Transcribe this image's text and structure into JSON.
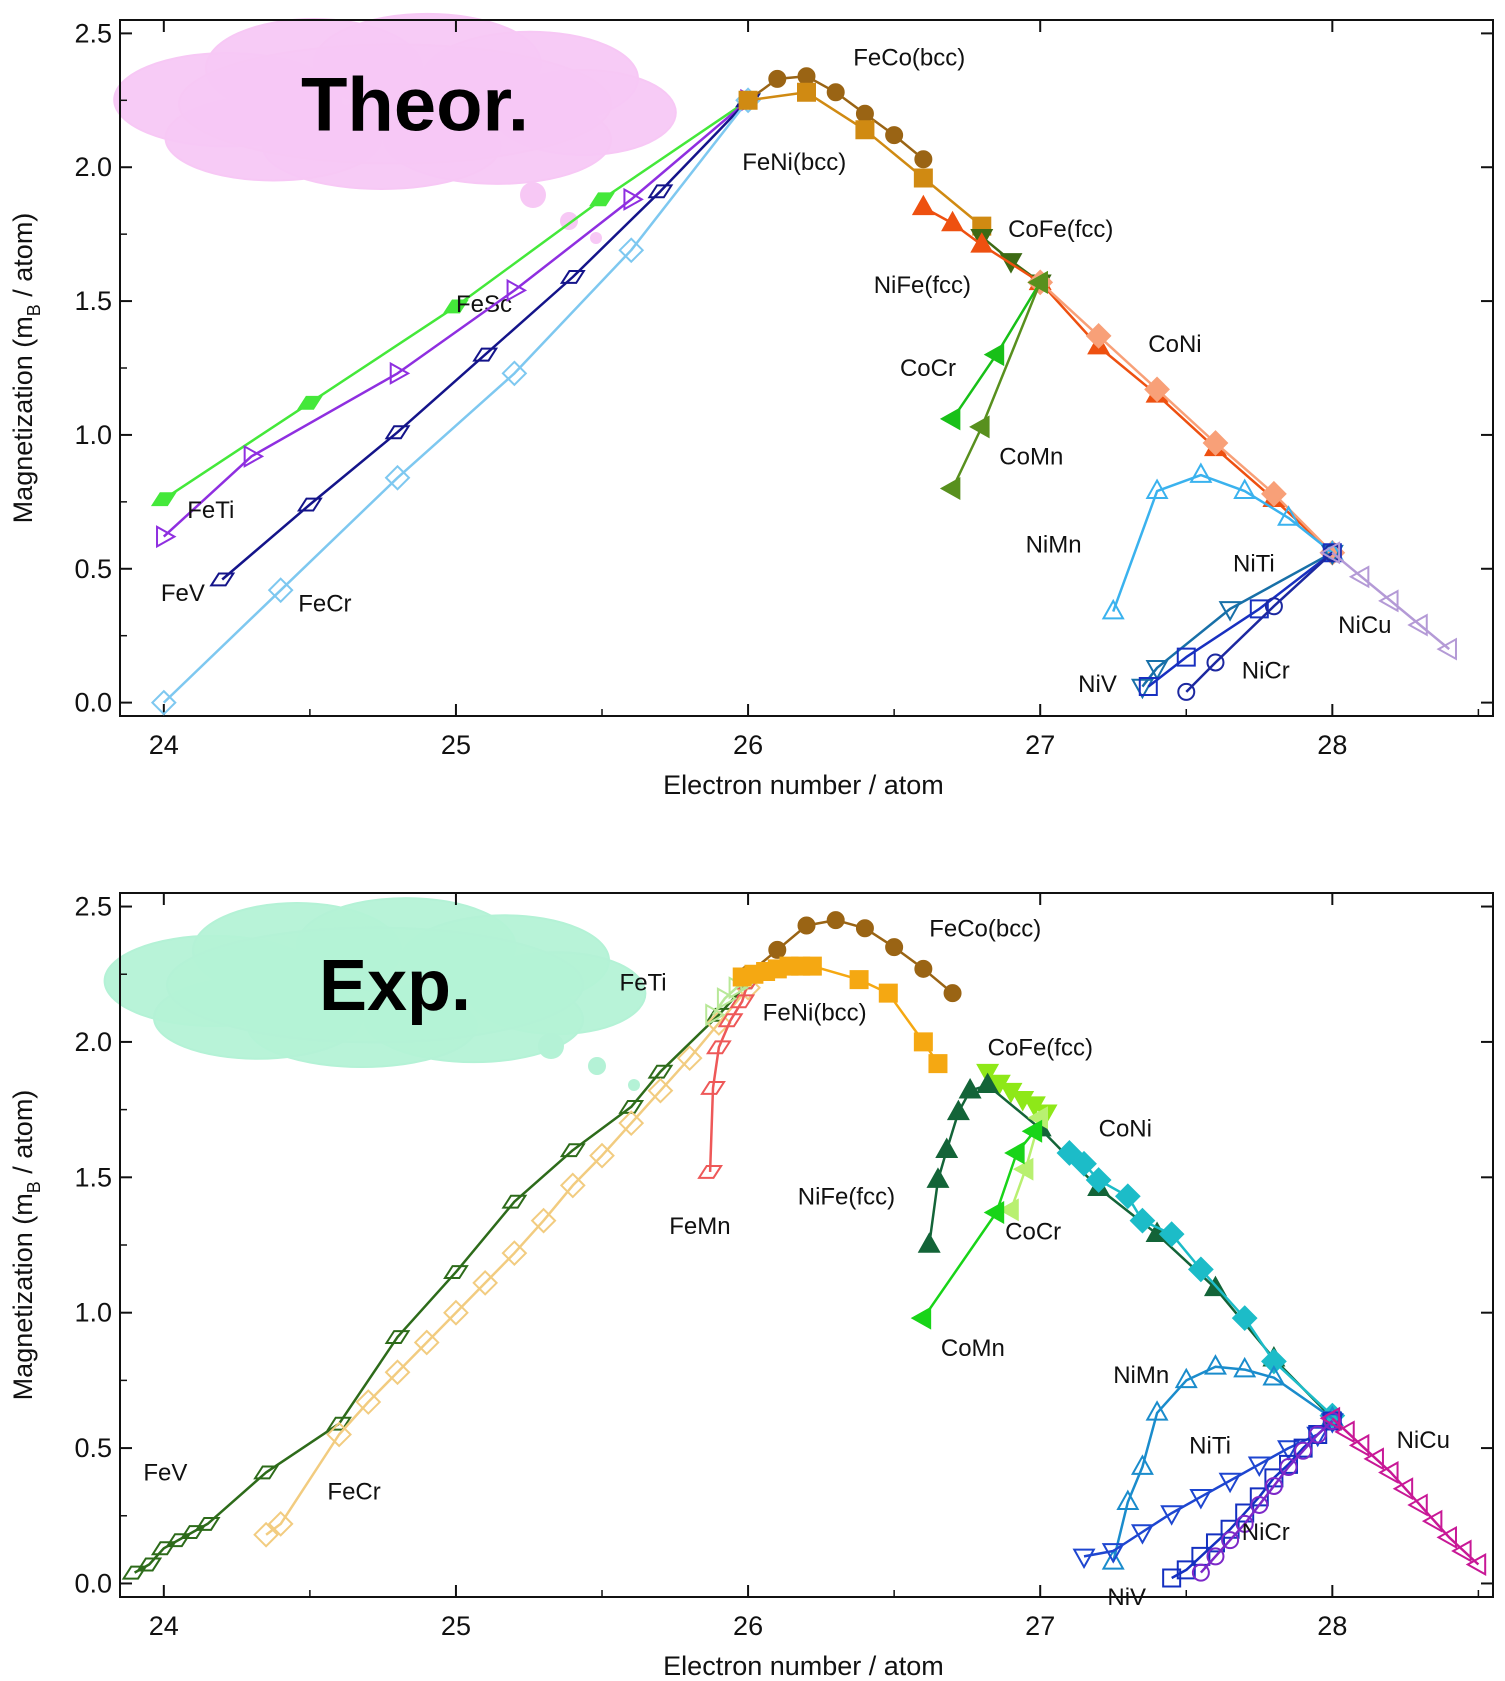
{
  "chart_data": [
    {
      "type": "line",
      "cloud_text": "Theor.",
      "cloud_color": "#f7c8f5",
      "xlabel": "Electron number / atom",
      "ylabel_main": "Magnetization (m",
      "ylabel_sub": "B",
      "ylabel_end": " / atom)",
      "xlim": [
        23.85,
        28.55
      ],
      "ylim": [
        -0.05,
        2.55
      ],
      "xticks": [
        "24",
        "25",
        "26",
        "27",
        "28"
      ],
      "yticks": [
        "0.0",
        "0.5",
        "1.0",
        "1.5",
        "2.0",
        "2.5"
      ],
      "series": [
        {
          "name": "FeSc",
          "color": "#44e83a",
          "marker": "diamond-thin",
          "filled": true,
          "label_at": [
            25.0,
            1.46
          ],
          "x": [
            24.0,
            24.5,
            25.0,
            25.5,
            26.0
          ],
          "y": [
            0.76,
            1.12,
            1.48,
            1.88,
            2.25
          ]
        },
        {
          "name": "FeTi",
          "color": "#8f2fe0",
          "marker": "tri-right",
          "filled": false,
          "label_at": [
            24.08,
            0.69
          ],
          "x": [
            24.0,
            24.3,
            24.8,
            25.2,
            25.6,
            26.0
          ],
          "y": [
            0.62,
            0.92,
            1.23,
            1.54,
            1.88,
            2.25
          ]
        },
        {
          "name": "FeV",
          "color": "#14148a",
          "marker": "diamond-thin",
          "filled": false,
          "label_at": [
            23.99,
            0.38
          ],
          "x": [
            24.2,
            24.5,
            24.8,
            25.1,
            25.4,
            25.7,
            26.0
          ],
          "y": [
            0.46,
            0.74,
            1.01,
            1.3,
            1.59,
            1.91,
            2.25
          ]
        },
        {
          "name": "FeCr",
          "color": "#7ec8f0",
          "marker": "diamond",
          "filled": false,
          "label_at": [
            24.46,
            0.34
          ],
          "x": [
            24.0,
            24.4,
            24.8,
            25.2,
            25.6,
            26.0
          ],
          "y": [
            0.0,
            0.42,
            0.84,
            1.23,
            1.69,
            2.25
          ]
        },
        {
          "name": "FeCo(bcc)",
          "color": "#9a6414",
          "marker": "circle",
          "filled": true,
          "label_at": [
            26.36,
            2.38
          ],
          "x": [
            26.0,
            26.1,
            26.2,
            26.3,
            26.4,
            26.5,
            26.6
          ],
          "y": [
            2.25,
            2.33,
            2.34,
            2.28,
            2.2,
            2.12,
            2.03
          ]
        },
        {
          "name": "FeNi(bcc)",
          "color": "#d08a12",
          "marker": "square",
          "filled": true,
          "label_at": [
            25.98,
            1.99
          ],
          "x": [
            26.0,
            26.2,
            26.4,
            26.6,
            26.8
          ],
          "y": [
            2.25,
            2.28,
            2.14,
            1.96,
            1.78
          ]
        },
        {
          "name": "CoFe(fcc)",
          "color": "#3d6a14",
          "marker": "tri-down",
          "filled": true,
          "label_at": [
            26.89,
            1.74
          ],
          "x": [
            26.8,
            26.9,
            27.0
          ],
          "y": [
            1.74,
            1.65,
            1.57
          ]
        },
        {
          "name": "NiFe(fcc)",
          "color": "#ee5010",
          "marker": "tri-up",
          "filled": true,
          "label_at": [
            26.43,
            1.53
          ],
          "x": [
            26.6,
            26.7,
            26.8,
            27.0,
            27.2,
            27.4,
            27.6,
            27.8,
            28.0
          ],
          "y": [
            1.85,
            1.79,
            1.71,
            1.57,
            1.33,
            1.15,
            0.95,
            0.76,
            0.56
          ]
        },
        {
          "name": "CoNi",
          "color": "#f8a078",
          "marker": "diamond",
          "filled": true,
          "label_at": [
            27.37,
            1.31
          ],
          "x": [
            27.0,
            27.2,
            27.4,
            27.6,
            27.8,
            28.0
          ],
          "y": [
            1.57,
            1.37,
            1.17,
            0.97,
            0.78,
            0.56
          ]
        },
        {
          "name": "CoCr",
          "color": "#18c018",
          "marker": "tri-left",
          "filled": true,
          "label_at": [
            26.52,
            1.22
          ],
          "x": [
            26.7,
            26.85,
            27.0
          ],
          "y": [
            1.06,
            1.3,
            1.57
          ]
        },
        {
          "name": "CoMn",
          "color": "#58901e",
          "marker": "tri-left",
          "filled": true,
          "label_at": [
            26.86,
            0.89
          ],
          "x": [
            26.7,
            26.8,
            27.0
          ],
          "y": [
            0.8,
            1.03,
            1.57
          ]
        },
        {
          "name": "NiMn",
          "color": "#3ab2ee",
          "marker": "tri-up",
          "filled": false,
          "label_at": [
            26.95,
            0.56
          ],
          "x": [
            27.25,
            27.4,
            27.55,
            27.7,
            27.85,
            28.0
          ],
          "y": [
            0.34,
            0.79,
            0.85,
            0.79,
            0.69,
            0.56
          ]
        },
        {
          "name": "NiTi",
          "color": "#1870a8",
          "marker": "tri-down",
          "filled": false,
          "label_at": [
            27.66,
            0.49
          ],
          "x": [
            27.35,
            27.4,
            27.65,
            28.0
          ],
          "y": [
            0.06,
            0.13,
            0.35,
            0.56
          ]
        },
        {
          "name": "NiV",
          "color": "#1830c0",
          "marker": "square",
          "filled": false,
          "label_at": [
            27.13,
            0.04
          ],
          "x": [
            27.37,
            27.5,
            27.75,
            28.0
          ],
          "y": [
            0.06,
            0.17,
            0.35,
            0.56
          ]
        },
        {
          "name": "NiCr",
          "color": "#1c28a0",
          "marker": "circle",
          "filled": false,
          "label_at": [
            27.69,
            0.09
          ],
          "x": [
            27.5,
            27.6,
            27.8,
            28.0
          ],
          "y": [
            0.04,
            0.15,
            0.36,
            0.56
          ]
        },
        {
          "name": "NiCu",
          "color": "#b49ad6",
          "marker": "tri-left",
          "filled": false,
          "label_at": [
            28.02,
            0.26
          ],
          "x": [
            28.0,
            28.1,
            28.2,
            28.3,
            28.4
          ],
          "y": [
            0.56,
            0.47,
            0.38,
            0.29,
            0.2
          ]
        }
      ]
    },
    {
      "type": "line",
      "cloud_text": "Exp.",
      "cloud_color": "#b4f2d6",
      "xlabel": "Electron number / atom",
      "ylabel_main": "Magnetization (m",
      "ylabel_sub": "B",
      "ylabel_end": " / atom)",
      "xlim": [
        23.85,
        28.55
      ],
      "ylim": [
        -0.05,
        2.55
      ],
      "xticks": [
        "24",
        "25",
        "26",
        "27",
        "28"
      ],
      "yticks": [
        "0.0",
        "0.5",
        "1.0",
        "1.5",
        "2.0",
        "2.5"
      ],
      "series": [
        {
          "name": "FeV",
          "color": "#2d6b1a",
          "marker": "diamond-thin",
          "filled": false,
          "label_at": [
            23.93,
            0.38
          ],
          "x": [
            23.9,
            23.95,
            24.0,
            24.05,
            24.1,
            24.15,
            24.35,
            24.6,
            24.8,
            25.0,
            25.2,
            25.4,
            25.6,
            25.7,
            25.9,
            26.0
          ],
          "y": [
            0.04,
            0.07,
            0.13,
            0.16,
            0.19,
            0.22,
            0.41,
            0.59,
            0.91,
            1.15,
            1.41,
            1.6,
            1.76,
            1.89,
            2.1,
            2.22
          ]
        },
        {
          "name": "FeCr",
          "color": "#f2cc80",
          "marker": "diamond",
          "filled": false,
          "label_at": [
            24.56,
            0.31
          ],
          "x": [
            24.35,
            24.4,
            24.6,
            24.7,
            24.8,
            24.9,
            25.0,
            25.1,
            25.2,
            25.3,
            25.4,
            25.5,
            25.6,
            25.7,
            25.8,
            25.9,
            26.0
          ],
          "y": [
            0.18,
            0.22,
            0.55,
            0.67,
            0.78,
            0.89,
            1.0,
            1.11,
            1.22,
            1.34,
            1.47,
            1.58,
            1.7,
            1.82,
            1.94,
            2.07,
            2.2
          ]
        },
        {
          "name": "FeMn",
          "color": "#ee5858",
          "marker": "diamond-thin",
          "filled": false,
          "label_at": [
            25.73,
            1.29
          ],
          "x": [
            25.87,
            25.88,
            25.9,
            25.94,
            25.98,
            26.0
          ],
          "y": [
            1.52,
            1.83,
            1.98,
            2.08,
            2.15,
            2.22
          ]
        },
        {
          "name": "FeTi",
          "color": "#b8e898",
          "marker": "tri-right",
          "filled": false,
          "label_at": [
            25.56,
            2.19
          ],
          "x": [
            25.88,
            25.92,
            25.96,
            26.0
          ],
          "y": [
            2.1,
            2.16,
            2.2,
            2.23
          ]
        },
        {
          "name": "FeCo(bcc)",
          "color": "#9a6414",
          "marker": "circle",
          "filled": true,
          "label_at": [
            26.62,
            2.39
          ],
          "x": [
            26.0,
            26.1,
            26.2,
            26.3,
            26.4,
            26.5,
            26.6,
            26.7
          ],
          "y": [
            2.25,
            2.34,
            2.43,
            2.45,
            2.42,
            2.35,
            2.27,
            2.18
          ]
        },
        {
          "name": "FeNi(bcc)",
          "color": "#f5a812",
          "marker": "square",
          "filled": true,
          "label_at": [
            26.05,
            2.08
          ],
          "x": [
            25.98,
            26.02,
            26.06,
            26.1,
            26.14,
            26.18,
            26.22,
            26.38,
            26.48,
            26.6,
            26.65
          ],
          "y": [
            2.24,
            2.25,
            2.26,
            2.27,
            2.28,
            2.28,
            2.28,
            2.23,
            2.18,
            2.0,
            1.92
          ]
        },
        {
          "name": "CoFe(fcc)",
          "color": "#8ee818",
          "marker": "tri-down",
          "filled": true,
          "label_at": [
            26.82,
            1.95
          ],
          "x": [
            26.82,
            26.86,
            26.9,
            26.94,
            26.98,
            27.02
          ],
          "y": [
            1.89,
            1.85,
            1.82,
            1.79,
            1.77,
            1.74
          ]
        },
        {
          "name": "NiFe(fcc)",
          "color": "#136438",
          "marker": "tri-up",
          "filled": true,
          "label_at": [
            26.17,
            1.4
          ],
          "x": [
            26.62,
            26.65,
            26.68,
            26.72,
            26.76,
            26.82,
            27.0,
            27.2,
            27.4,
            27.6,
            27.8,
            28.0
          ],
          "y": [
            1.25,
            1.49,
            1.6,
            1.74,
            1.82,
            1.84,
            1.68,
            1.46,
            1.29,
            1.09,
            0.83,
            0.61
          ]
        },
        {
          "name": "CoNi",
          "color": "#1cbcc8",
          "marker": "diamond",
          "filled": true,
          "label_at": [
            27.2,
            1.65
          ],
          "x": [
            27.1,
            27.15,
            27.2,
            27.3,
            27.35,
            27.45,
            27.55,
            27.7,
            27.8,
            28.0
          ],
          "y": [
            1.59,
            1.55,
            1.49,
            1.43,
            1.34,
            1.29,
            1.16,
            0.98,
            0.82,
            0.62
          ]
        },
        {
          "name": "CoCr",
          "color": "#b8f070",
          "marker": "tri-left",
          "filled": true,
          "label_at": [
            26.88,
            1.27
          ],
          "x": [
            26.9,
            26.95,
            27.0
          ],
          "y": [
            1.38,
            1.53,
            1.72
          ]
        },
        {
          "name": "CoMn",
          "color": "#18d418",
          "marker": "tri-left",
          "filled": true,
          "label_at": [
            26.66,
            0.84
          ],
          "x": [
            26.6,
            26.85,
            26.92,
            26.98
          ],
          "y": [
            0.98,
            1.37,
            1.59,
            1.67
          ]
        },
        {
          "name": "NiMn",
          "color": "#1a8ccc",
          "marker": "tri-up",
          "filled": false,
          "label_at": [
            27.25,
            0.74
          ],
          "x": [
            27.25,
            27.3,
            27.35,
            27.4,
            27.5,
            27.6,
            27.7,
            27.8,
            28.0
          ],
          "y": [
            0.08,
            0.3,
            0.43,
            0.63,
            0.75,
            0.8,
            0.79,
            0.76,
            0.61
          ]
        },
        {
          "name": "NiTi",
          "color": "#1e46d0",
          "marker": "tri-down",
          "filled": false,
          "label_at": [
            27.51,
            0.48
          ],
          "x": [
            27.15,
            27.25,
            27.35,
            27.45,
            27.55,
            27.65,
            27.75,
            27.85,
            27.95,
            28.0
          ],
          "y": [
            0.1,
            0.12,
            0.19,
            0.26,
            0.32,
            0.38,
            0.44,
            0.5,
            0.55,
            0.6
          ]
        },
        {
          "name": "NiV",
          "color": "#1430c0",
          "marker": "square",
          "filled": false,
          "label_at": [
            27.23,
            -0.08
          ],
          "x": [
            27.45,
            27.5,
            27.55,
            27.6,
            27.65,
            27.7,
            27.75,
            27.8,
            27.85,
            27.9,
            27.95,
            28.0
          ],
          "y": [
            0.02,
            0.05,
            0.1,
            0.15,
            0.2,
            0.26,
            0.32,
            0.39,
            0.44,
            0.5,
            0.55,
            0.6
          ]
        },
        {
          "name": "NiCr",
          "color": "#7c28c8",
          "marker": "circle",
          "filled": false,
          "label_at": [
            27.69,
            0.16
          ],
          "x": [
            27.55,
            27.6,
            27.65,
            27.7,
            27.75,
            27.8,
            27.85,
            27.9,
            27.95,
            28.0
          ],
          "y": [
            0.04,
            0.1,
            0.16,
            0.22,
            0.29,
            0.36,
            0.43,
            0.49,
            0.55,
            0.6
          ]
        },
        {
          "name": "NiCu",
          "color": "#c81896",
          "marker": "tri-left",
          "filled": false,
          "label_at": [
            28.22,
            0.5
          ],
          "x": [
            28.0,
            28.05,
            28.1,
            28.15,
            28.2,
            28.25,
            28.3,
            28.35,
            28.4,
            28.45,
            28.5
          ],
          "y": [
            0.61,
            0.56,
            0.51,
            0.46,
            0.41,
            0.35,
            0.29,
            0.23,
            0.17,
            0.12,
            0.07
          ]
        }
      ]
    }
  ]
}
